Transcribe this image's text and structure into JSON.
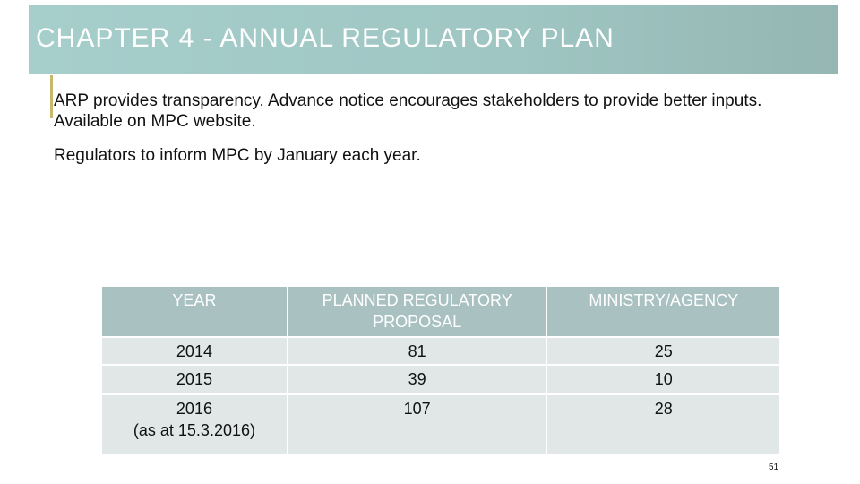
{
  "slide": {
    "title": "CHAPTER 4 - ANNUAL REGULATORY PLAN",
    "paragraphs": [
      "ARP provides transparency. Advance notice encourages stakeholders to provide better inputs. Available on MPC website.",
      "Regulators to inform MPC by January each year."
    ],
    "slide_number": "51"
  },
  "table": {
    "headers": [
      "YEAR",
      "PLANNED REGULATORY PROPOSAL",
      "MINISTRY/AGENCY"
    ],
    "rows": [
      {
        "year": "2014",
        "year_note": "",
        "proposals": "81",
        "ministries": "25"
      },
      {
        "year": "2015",
        "year_note": "",
        "proposals": "39",
        "ministries": "10"
      },
      {
        "year": "2016",
        "year_note": "(as at 15.3.2016)",
        "proposals": "107",
        "ministries": "28"
      }
    ]
  },
  "colors": {
    "title_bar": "#a6cecb",
    "accent": "#c8b96a",
    "table_header": "#a9c1c1",
    "table_body": "#e1e7e7"
  }
}
